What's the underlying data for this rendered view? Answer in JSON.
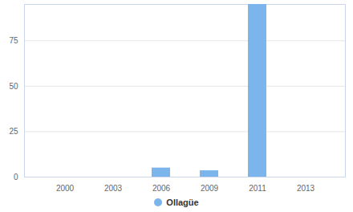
{
  "chart_data": {
    "type": "bar",
    "categories": [
      "2000",
      "2003",
      "2006",
      "2009",
      "2011",
      "2013"
    ],
    "series": [
      {
        "name": "Ollagüe",
        "color": "#7cb5ec",
        "values": [
          0,
          0,
          5,
          3.5,
          95,
          0
        ]
      }
    ],
    "ylim": [
      0,
      95
    ],
    "yticks": [
      0,
      25,
      50,
      75
    ],
    "grid": true,
    "legend": "bottom"
  }
}
